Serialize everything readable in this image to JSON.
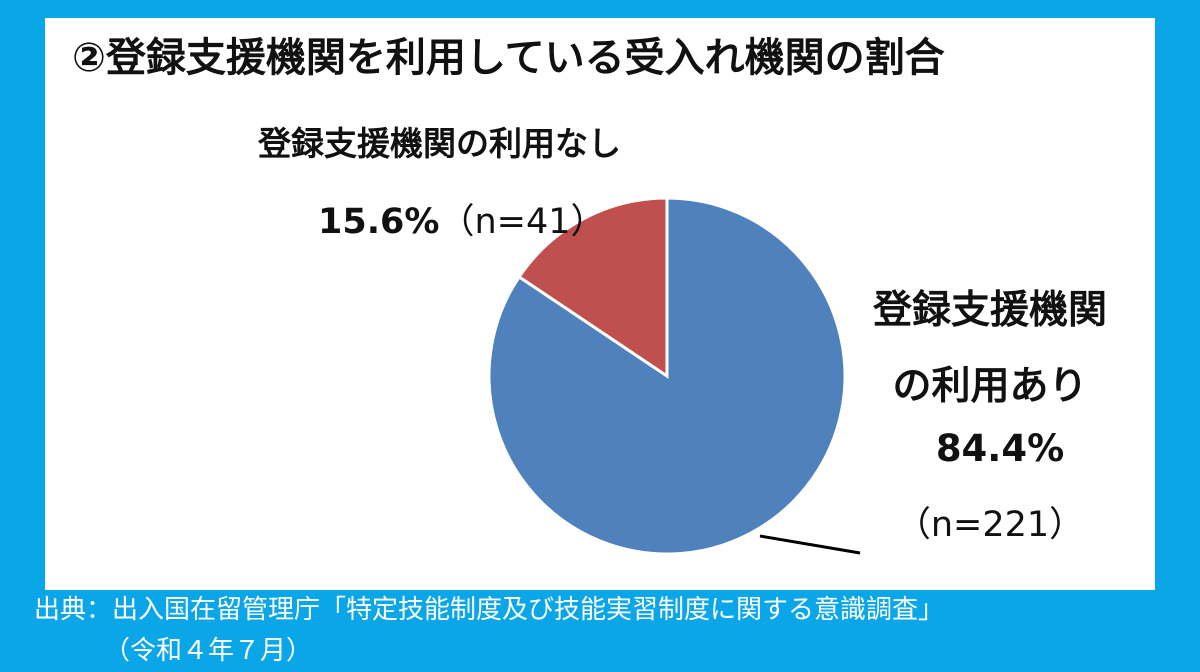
{
  "chart_data": {
    "type": "pie",
    "title": "②登録支援機関を利用している受入れ機関の割合",
    "categories": [
      "登録支援機関の利用なし",
      "登録支援機関の利用あり"
    ],
    "values": [
      15.6,
      84.4
    ],
    "value_labels": [
      "15.6%",
      "84.4%"
    ],
    "count_labels": [
      "（n=41）",
      "（n=221）"
    ],
    "colors": [
      "#c0504d",
      "#4f81bd"
    ],
    "source": [
      "出典：出入国在留管理庁「特定技能制度及び技能実習制度に関する意識調査」",
      "（令和４年７月）"
    ]
  }
}
